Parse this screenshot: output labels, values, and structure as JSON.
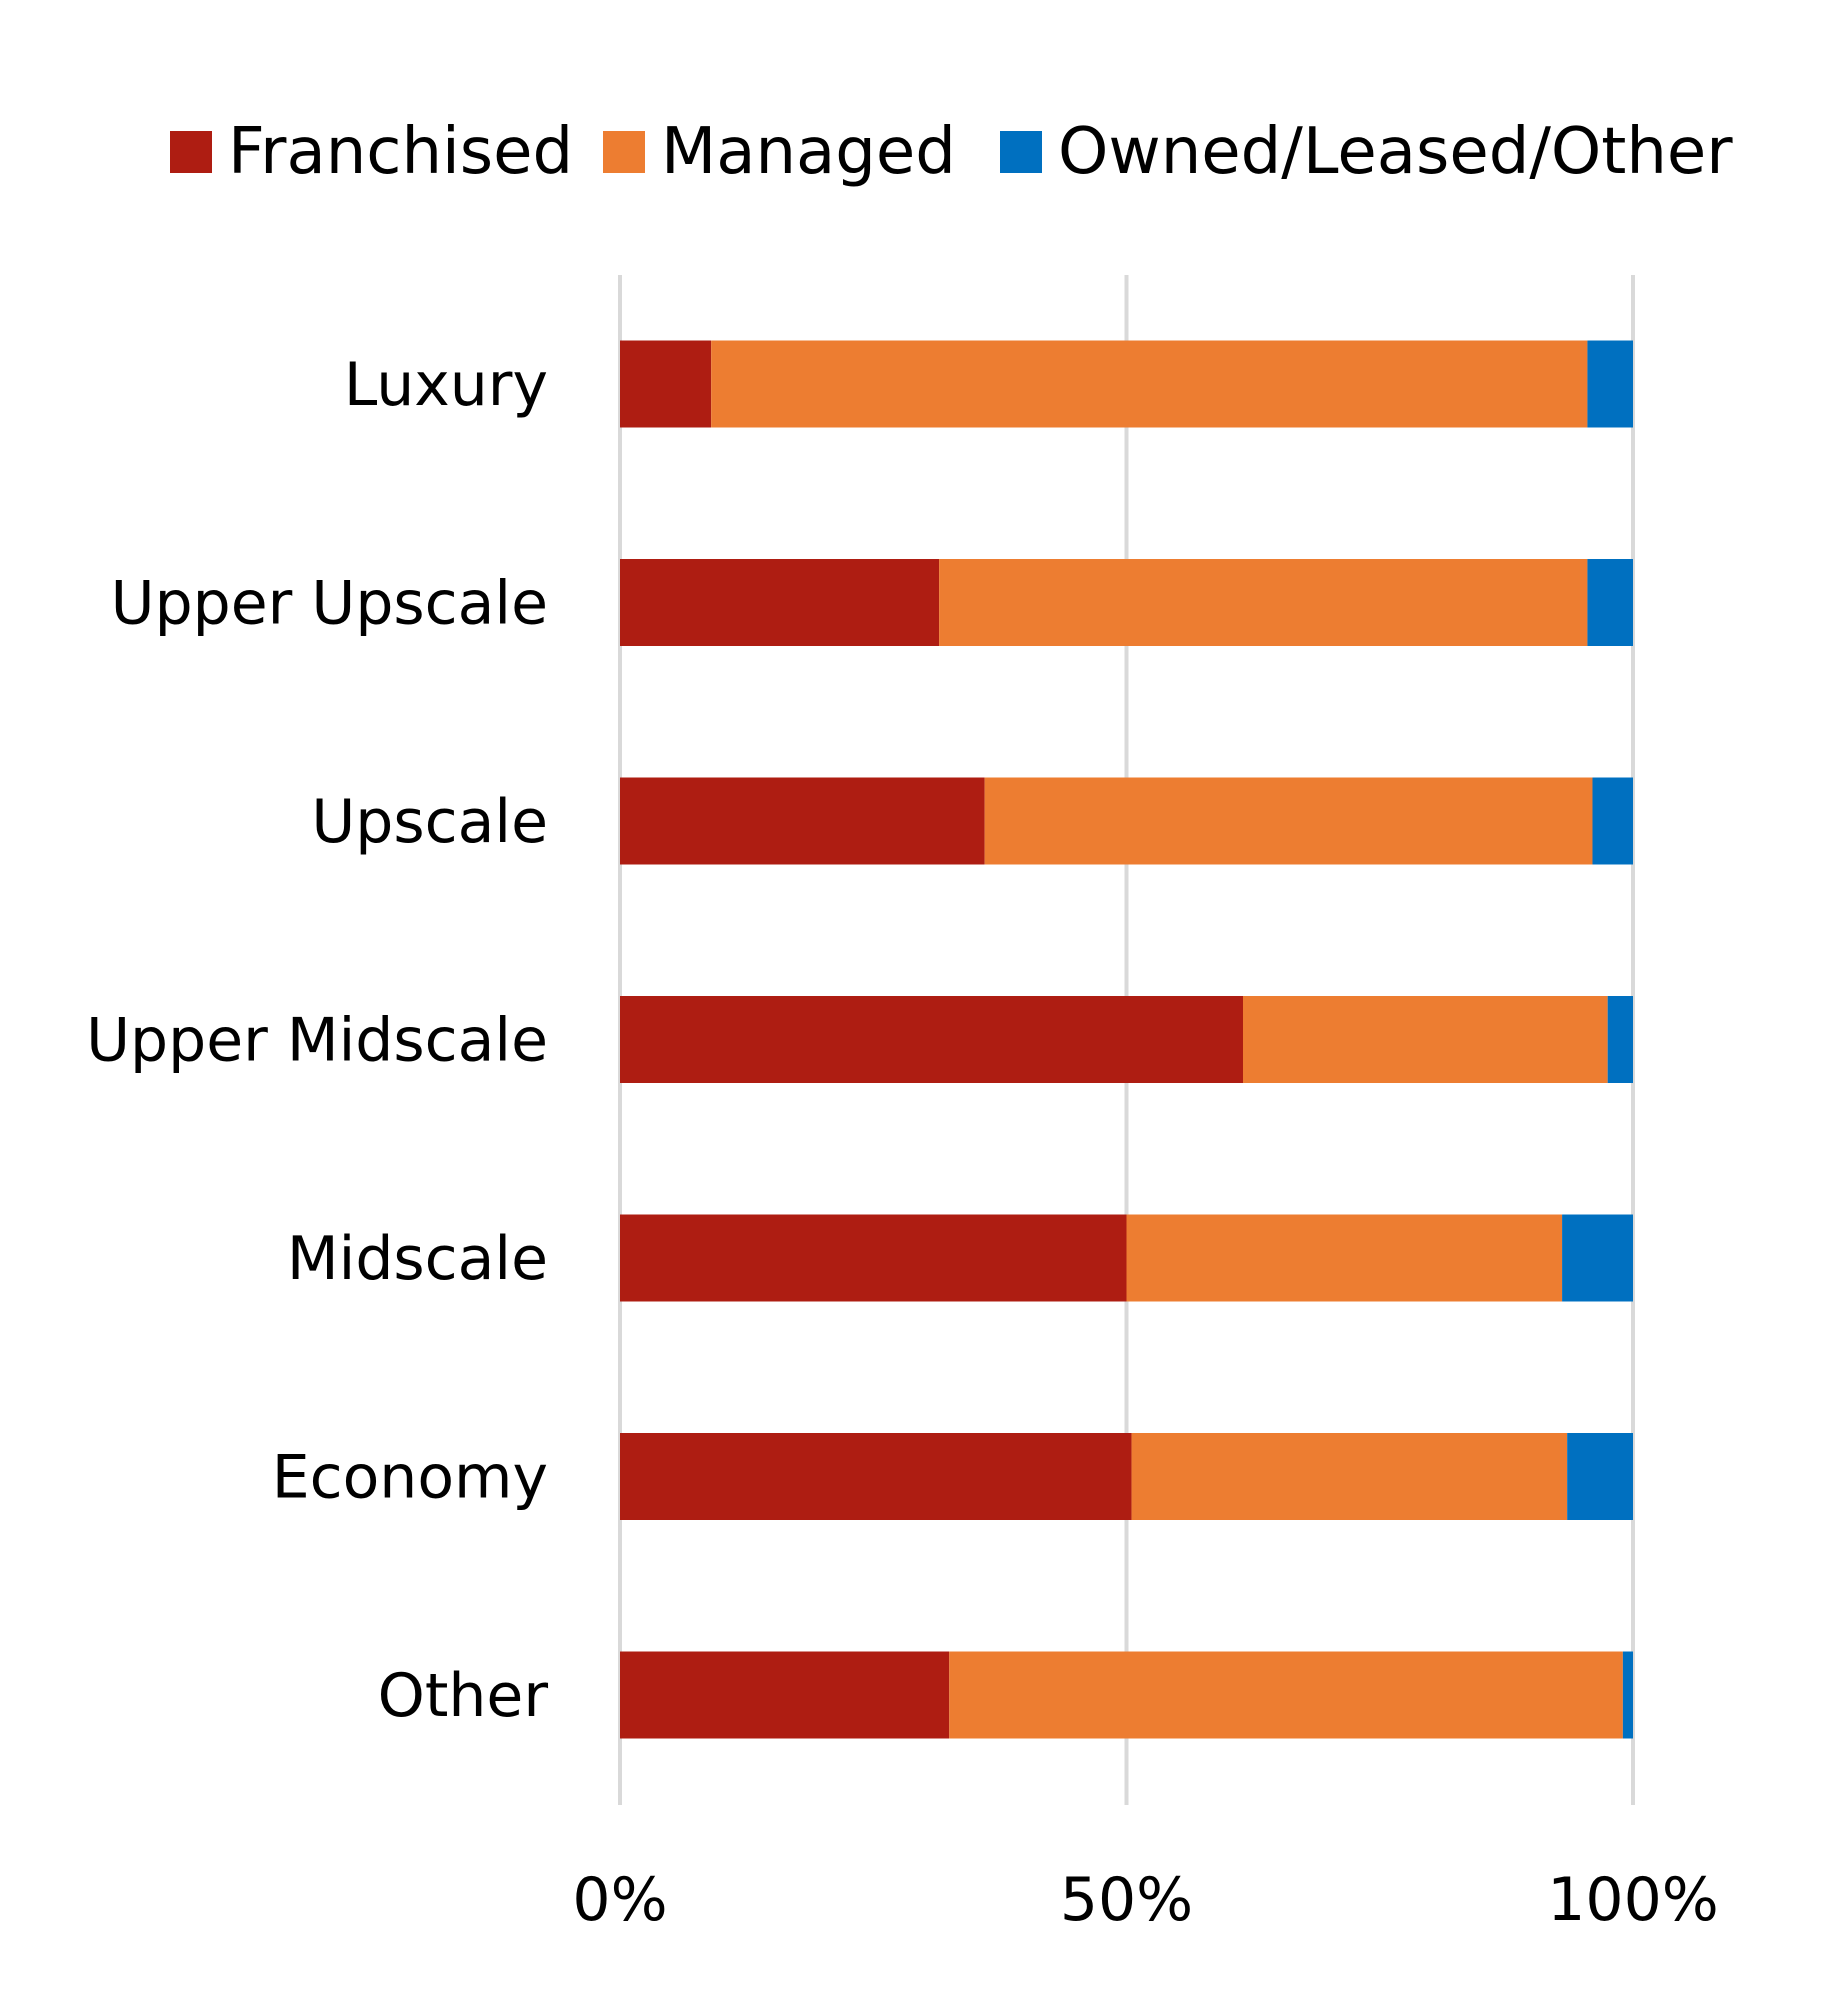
{
  "chart_data": {
    "type": "bar",
    "orientation": "horizontal",
    "stacked": true,
    "categories": [
      "Luxury",
      "Upper Upscale",
      "Upscale",
      "Upper Midscale",
      "Midscale",
      "Economy",
      "Other"
    ],
    "series": [
      {
        "name": "Franchised",
        "color": "#ae1d12",
        "values": [
          9,
          31.5,
          36,
          61.5,
          50,
          50.5,
          32.5
        ]
      },
      {
        "name": "Managed",
        "color": "#ed7d31",
        "values": [
          86.5,
          64,
          60,
          36,
          43,
          43,
          66.5
        ]
      },
      {
        "name": "Owned/Leased/Other",
        "color": "#0070c0",
        "values": [
          4.5,
          4.5,
          4,
          2.5,
          7,
          6.5,
          1
        ]
      }
    ],
    "x_ticks": [
      "0%",
      "50%",
      "100%"
    ],
    "xlim": [
      0,
      100
    ],
    "grid": true,
    "legend_position": "top"
  }
}
